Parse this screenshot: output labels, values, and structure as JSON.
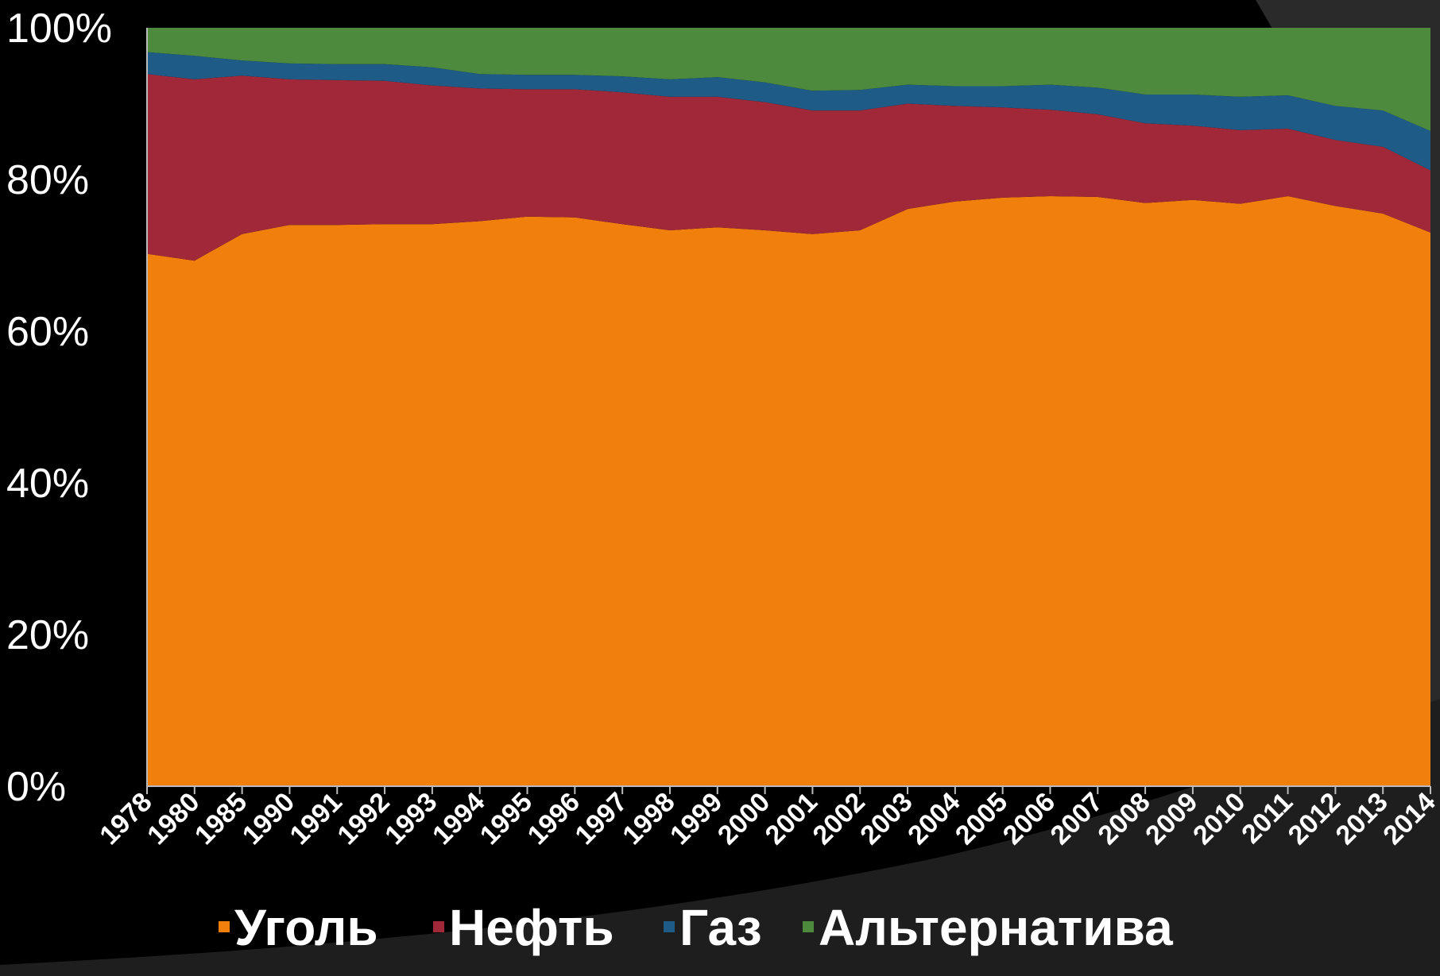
{
  "chart_data": {
    "type": "area",
    "stacked": true,
    "percent": true,
    "title": "",
    "xlabel": "",
    "ylabel": "",
    "ylim": [
      0,
      100
    ],
    "y_ticks": [
      "0%",
      "20%",
      "40%",
      "60%",
      "80%",
      "100%"
    ],
    "grid": false,
    "legend_position": "bottom",
    "categories": [
      "1978",
      "1980",
      "1985",
      "1990",
      "1991",
      "1992",
      "1993",
      "1994",
      "1995",
      "1996",
      "1997",
      "1998",
      "1999",
      "2000",
      "2001",
      "2002",
      "2003",
      "2004",
      "2005",
      "2006",
      "2007",
      "2008",
      "2009",
      "2010",
      "2011",
      "2012",
      "2013",
      "2014"
    ],
    "series": [
      {
        "name": "Уголь",
        "color": "#f07f0c",
        "values": [
          70.2,
          69.3,
          72.8,
          74.0,
          74.0,
          74.1,
          74.1,
          74.5,
          75.1,
          75.0,
          74.1,
          73.3,
          73.7,
          73.3,
          72.8,
          73.3,
          76.1,
          77.1,
          77.6,
          77.8,
          77.7,
          76.9,
          77.3,
          76.8,
          77.8,
          76.5,
          75.5,
          73.0
        ]
      },
      {
        "name": "Нефть",
        "color": "#a02838",
        "values": [
          23.7,
          23.9,
          20.9,
          19.2,
          19.1,
          18.9,
          18.3,
          17.5,
          16.8,
          16.9,
          17.4,
          17.6,
          17.2,
          16.9,
          16.3,
          15.8,
          13.9,
          12.6,
          11.9,
          11.4,
          10.9,
          10.5,
          9.8,
          9.7,
          8.9,
          8.7,
          8.8,
          8.2
        ]
      },
      {
        "name": "Газ",
        "color": "#1e5b86",
        "values": [
          2.9,
          3.1,
          2.0,
          2.1,
          2.1,
          2.2,
          2.4,
          1.9,
          1.9,
          1.9,
          2.1,
          2.3,
          2.6,
          2.6,
          2.6,
          2.7,
          2.5,
          2.6,
          2.8,
          3.3,
          3.5,
          3.8,
          4.1,
          4.4,
          4.4,
          4.5,
          4.8,
          5.2
        ]
      },
      {
        "name": "Альтернатива",
        "color": "#4d8a3e",
        "values": [
          3.2,
          3.7,
          4.3,
          4.7,
          4.8,
          4.8,
          5.2,
          6.1,
          6.2,
          6.2,
          6.4,
          6.8,
          6.5,
          7.2,
          8.3,
          8.2,
          7.5,
          7.7,
          7.7,
          7.5,
          7.9,
          8.8,
          8.8,
          9.1,
          8.9,
          10.3,
          10.9,
          13.6
        ]
      }
    ]
  }
}
